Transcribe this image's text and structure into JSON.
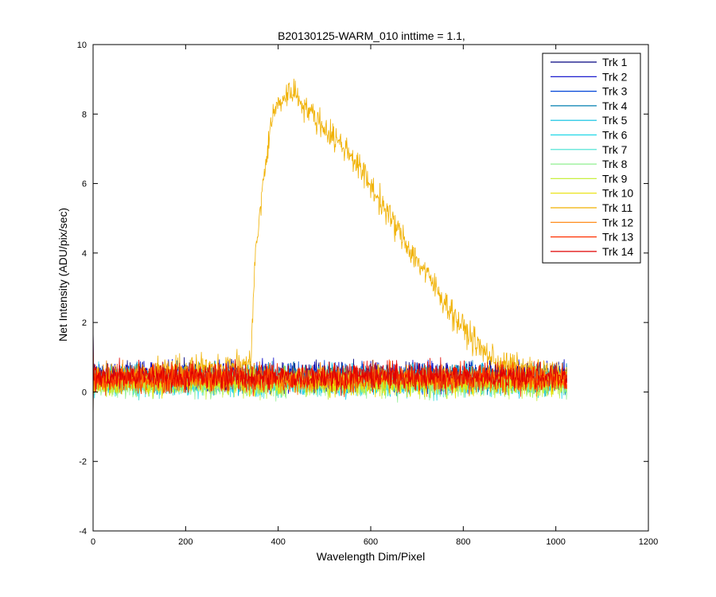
{
  "chart_data": {
    "type": "line",
    "title": "B20130125-WARM_010 inttime = 1.1,",
    "xlabel": "Wavelength Dim/Pixel",
    "ylabel": "Net Intensity (ADU/pix/sec)",
    "xlim": [
      0,
      1200
    ],
    "ylim": [
      -4,
      10
    ],
    "xticks": [
      0,
      200,
      400,
      600,
      800,
      1000,
      1200
    ],
    "yticks": [
      -4,
      -2,
      0,
      2,
      4,
      6,
      8,
      10
    ],
    "grid": false,
    "legend_position": "top-right",
    "x_range": [
      0,
      1024
    ],
    "series": [
      {
        "name": "Trk 1",
        "color": "#00007F",
        "baseline": 0.45,
        "noise": 0.3
      },
      {
        "name": "Trk 2",
        "color": "#0000C8",
        "baseline": 0.45,
        "noise": 0.3
      },
      {
        "name": "Trk 3",
        "color": "#0044D8",
        "baseline": 0.4,
        "noise": 0.3
      },
      {
        "name": "Trk 4",
        "color": "#007FB0",
        "baseline": 0.4,
        "noise": 0.3
      },
      {
        "name": "Trk 5",
        "color": "#00BFE0",
        "baseline": 0.35,
        "noise": 0.3
      },
      {
        "name": "Trk 6",
        "color": "#20D8E8",
        "baseline": 0.3,
        "noise": 0.3
      },
      {
        "name": "Trk 7",
        "color": "#40E0D0",
        "baseline": 0.3,
        "noise": 0.3
      },
      {
        "name": "Trk 8",
        "color": "#8FEF8F",
        "baseline": 0.25,
        "noise": 0.3
      },
      {
        "name": "Trk 9",
        "color": "#C8F040",
        "baseline": 0.25,
        "noise": 0.3
      },
      {
        "name": "Trk 10",
        "color": "#E8E000",
        "baseline": 0.3,
        "noise": 0.3
      },
      {
        "name": "Trk 11",
        "color": "#F0B000",
        "profile": [
          [
            0,
            0.4
          ],
          [
            340,
            0.8
          ],
          [
            350,
            3.8
          ],
          [
            365,
            5.7
          ],
          [
            385,
            7.8
          ],
          [
            400,
            8.3
          ],
          [
            430,
            8.7
          ],
          [
            460,
            8.2
          ],
          [
            500,
            7.6
          ],
          [
            560,
            6.8
          ],
          [
            620,
            5.5
          ],
          [
            680,
            4.2
          ],
          [
            740,
            3.0
          ],
          [
            790,
            2.0
          ],
          [
            840,
            1.2
          ],
          [
            880,
            0.8
          ],
          [
            1024,
            0.4
          ]
        ],
        "noise": 0.3
      },
      {
        "name": "Trk 12",
        "color": "#FF7F00",
        "baseline": 0.4,
        "noise": 0.3
      },
      {
        "name": "Trk 13",
        "color": "#FF3000",
        "baseline": 0.4,
        "noise": 0.3
      },
      {
        "name": "Trk 14",
        "color": "#E00000",
        "baseline": 0.45,
        "noise": 0.3
      }
    ]
  }
}
